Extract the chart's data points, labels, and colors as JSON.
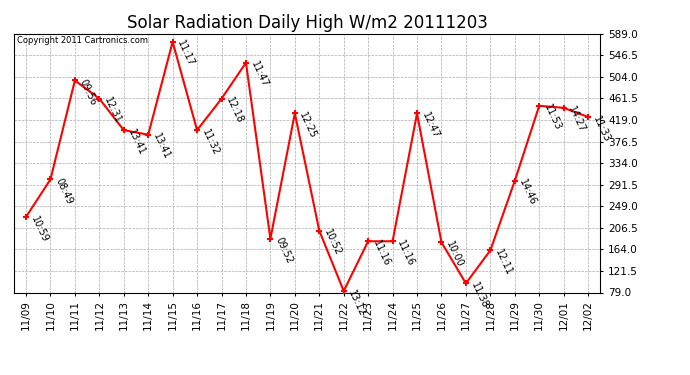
{
  "title": "Solar Radiation Daily High W/m2 20111203",
  "copyright": "Copyright 2011 Cartronics.com",
  "dates": [
    "11/09",
    "11/10",
    "11/11",
    "11/12",
    "11/13",
    "11/14",
    "11/15",
    "11/16",
    "11/17",
    "11/18",
    "11/19",
    "11/20",
    "11/21",
    "11/22",
    "11/23",
    "11/24",
    "11/25",
    "11/26",
    "11/27",
    "11/28",
    "11/29",
    "11/30",
    "12/01",
    "12/02"
  ],
  "values": [
    228,
    302,
    497,
    461,
    399,
    390,
    573,
    399,
    461,
    532,
    185,
    432,
    201,
    82,
    180,
    180,
    432,
    178,
    97,
    162,
    299,
    447,
    443,
    425
  ],
  "labels": [
    "10:59",
    "08:49",
    "09:56",
    "12:31",
    "13:41",
    "13:41",
    "11:17",
    "11:32",
    "12:18",
    "11:47",
    "09:52",
    "12:25",
    "10:52",
    "13:12",
    "11:16",
    "11:16",
    "12:47",
    "10:00",
    "11:38",
    "12:11",
    "14:46",
    "11:53",
    "14:27",
    "11:33"
  ],
  "ylim": [
    79.0,
    589.0
  ],
  "yticks": [
    79.0,
    121.5,
    164.0,
    206.5,
    249.0,
    291.5,
    334.0,
    376.5,
    419.0,
    461.5,
    504.0,
    546.5,
    589.0
  ],
  "line_color": "#ff0000",
  "marker_color": "#ff0000",
  "bg_color": "#ffffff",
  "grid_color": "#aaaaaa",
  "title_fontsize": 12,
  "label_fontsize": 7,
  "tick_fontsize": 7.5,
  "figwidth": 6.9,
  "figheight": 3.75,
  "dpi": 100
}
